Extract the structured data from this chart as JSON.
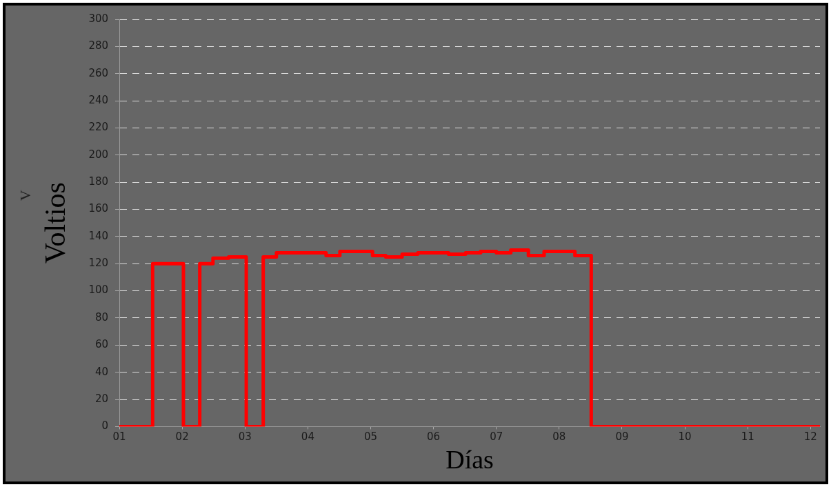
{
  "chart_data": {
    "type": "step",
    "xlabel": "Días",
    "ylabel": "Voltios",
    "annotations": [
      "V"
    ],
    "x": [
      1,
      1.53,
      2.02,
      2.28,
      2.49,
      2.74,
      3.02,
      3.29,
      3.5,
      4.29,
      4.51,
      5.03,
      5.24,
      5.5,
      5.75,
      6.24,
      6.51,
      6.75,
      7.0,
      7.23,
      7.51,
      7.76,
      8.25,
      8.51,
      12.15
    ],
    "series": [
      {
        "color": "#ff0000",
        "values": [
          0,
          120,
          0,
          120,
          124,
          125,
          0,
          125,
          128,
          126,
          129,
          126,
          125,
          127,
          128,
          127,
          128,
          129,
          128,
          130,
          126,
          129,
          126,
          0,
          0
        ]
      }
    ],
    "xlim": [
      1,
      12.15
    ],
    "xticks": [
      {
        "value": 1,
        "label": "01"
      },
      {
        "value": 2,
        "label": "02"
      },
      {
        "value": 3,
        "label": "03"
      },
      {
        "value": 4,
        "label": "04"
      },
      {
        "value": 5,
        "label": "05"
      },
      {
        "value": 6,
        "label": "06"
      },
      {
        "value": 7,
        "label": "07"
      },
      {
        "value": 8,
        "label": "08"
      },
      {
        "value": 9,
        "label": "09"
      },
      {
        "value": 10,
        "label": "10"
      },
      {
        "value": 11,
        "label": "11"
      },
      {
        "value": 12,
        "label": "12"
      }
    ],
    "ylim": [
      0,
      300
    ],
    "yticks": [
      0,
      20,
      40,
      60,
      80,
      100,
      120,
      140,
      160,
      180,
      200,
      220,
      240,
      260,
      280,
      300
    ],
    "grid": "y",
    "legend": false,
    "marker": "none",
    "line_style": "solid"
  }
}
